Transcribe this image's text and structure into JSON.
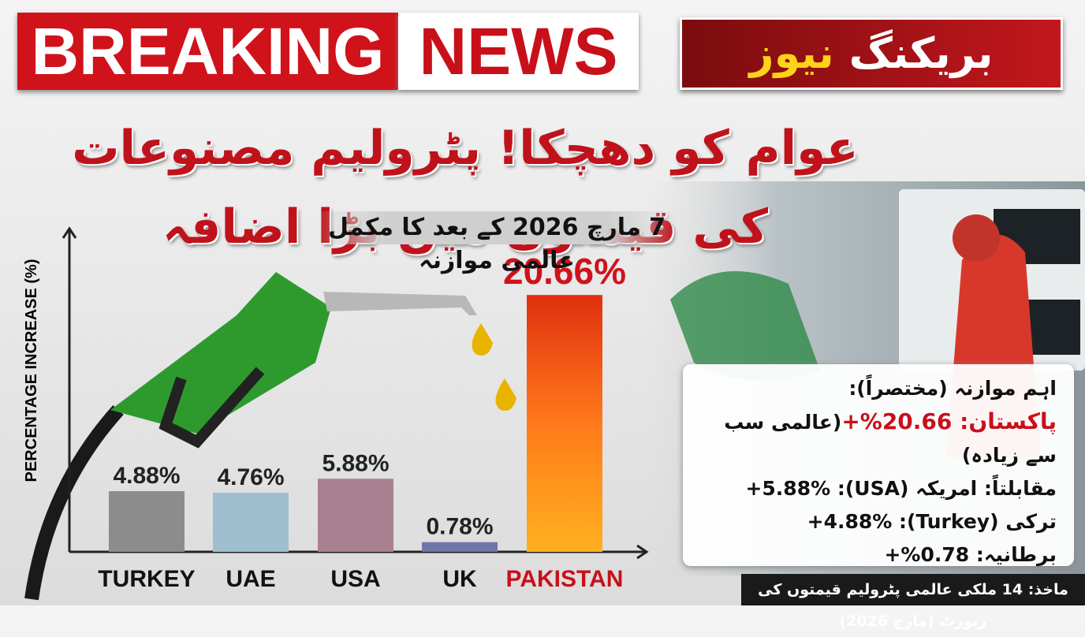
{
  "banner": {
    "english_left": "BREAKING",
    "english_right": "NEWS",
    "urdu_white": "بریکنگ",
    "urdu_yellow": "نیوز"
  },
  "headline": "عوام کو دھچکا! پٹرولیم مصنوعات کی قیمتوں میں بڑا اضافہ",
  "chart_data": {
    "type": "bar",
    "subtitle": "7 مارچ 2026 کے بعد کا مکمل عالمی موازنہ",
    "y_label": "PERCENTAGE INCREASE (%)",
    "categories": [
      "TURKEY",
      "UAE",
      "USA",
      "UK",
      "PAKISTAN"
    ],
    "values": [
      4.88,
      4.76,
      5.88,
      0.78,
      20.66
    ],
    "value_labels": [
      "4.88%",
      "4.76%",
      "5.88%",
      "0.78%",
      "20.66%"
    ],
    "colors": [
      "#8c8c8c",
      "#9fbfd0",
      "#a8808f",
      "#7076a6",
      "#ee4a18"
    ],
    "ylim": [
      0,
      26
    ]
  },
  "info_box": {
    "heading": "اہم موازنہ (مختصراً):",
    "pakistan": "پاکستان: 20.66%+",
    "pakistan_note": "(عالمی سب سے زیادہ)",
    "lines": [
      "مقابلتاً: امریکہ (USA): 5.88%+",
      "ترکی (Turkey): 4.88%+",
      "برطانیہ: 0.78%+"
    ]
  },
  "source": "ماخذ: 14 ملکی عالمی پٹرولیم قیمتوں کی رپورٹ (مارچ 2026)"
}
